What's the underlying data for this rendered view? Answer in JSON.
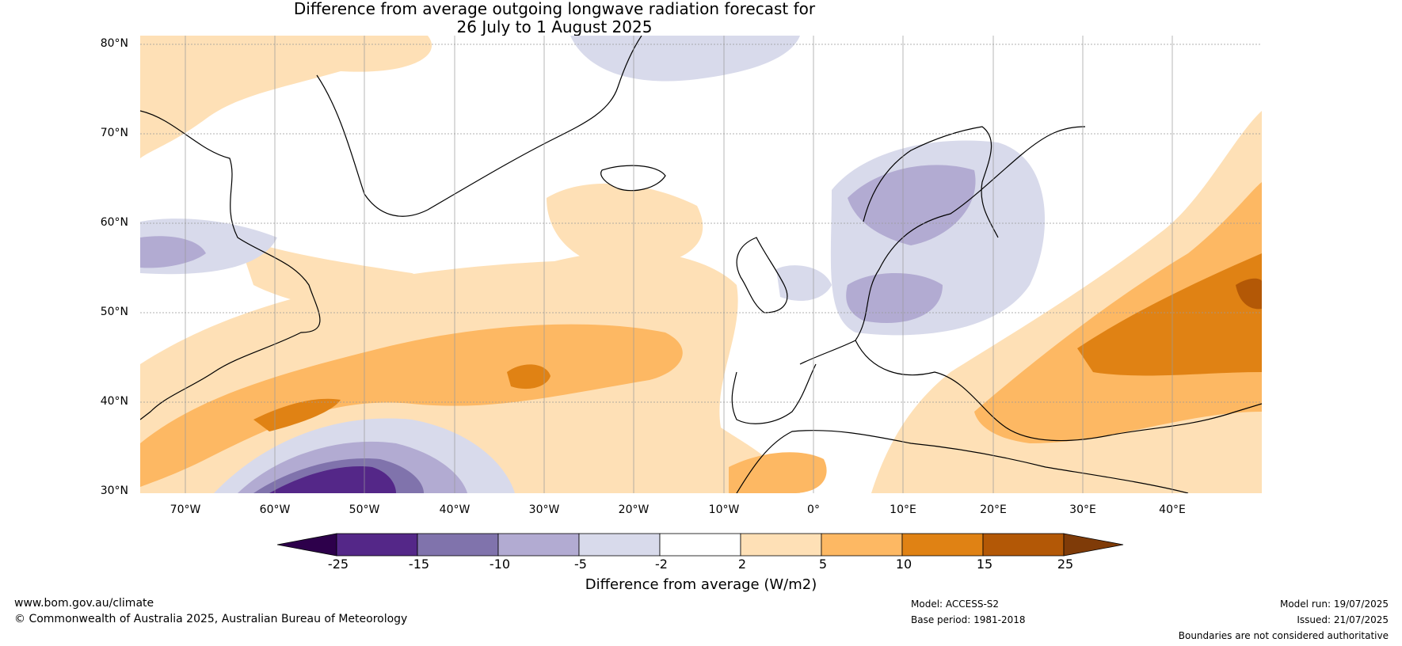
{
  "title": {
    "line1": "Difference from average outgoing longwave radiation forecast for",
    "line2": "26 July to 1 August 2025"
  },
  "map": {
    "lat_labels": [
      "80°N",
      "70°N",
      "60°N",
      "50°N",
      "40°N",
      "30°N"
    ],
    "lon_labels": [
      "70°W",
      "60°W",
      "50°W",
      "40°W",
      "30°W",
      "20°W",
      "10°W",
      "0°",
      "10°E",
      "20°E",
      "30°E",
      "40°E"
    ],
    "regions": [
      {
        "name": "north-atlantic-warm-band",
        "category": "2 to 5",
        "color": "#fde0b6"
      },
      {
        "name": "central-atlantic-warm-core",
        "category": "5 to 10",
        "color": "#f9b55d"
      },
      {
        "name": "atlantic-hot-spot",
        "category": "10 to 15",
        "color": "#e08317"
      },
      {
        "name": "subtropical-cold-pool",
        "category": "-25 to -15",
        "color": "#54278f"
      },
      {
        "name": "scandinavia-cool",
        "category": "-10 to -5",
        "color": "#b2abd2"
      },
      {
        "name": "eastern-europe-warm",
        "category": "15 to 25",
        "color": "#b35806"
      }
    ]
  },
  "colorbar": {
    "ticks": [
      "-25",
      "-15",
      "-10",
      "-5",
      "-2",
      "2",
      "5",
      "10",
      "15",
      "25"
    ],
    "colors": [
      "#2d004b",
      "#542788",
      "#8073ac",
      "#b2abd2",
      "#d8daeb",
      "#ffffff",
      "#fee0b6",
      "#fdb863",
      "#e08214",
      "#b35806",
      "#7f3b08"
    ],
    "label": "Difference from average (W/m2)"
  },
  "footer": {
    "website": "www.bom.gov.au/climate",
    "copyright": "© Commonwealth of Australia 2025, Australian Bureau of Meteorology",
    "model": "Model: ACCESS-S2",
    "base_period": "Base period: 1981-2018",
    "model_run": "Model run: 19/07/2025",
    "issued": "Issued: 21/07/2025",
    "disclaimer": "Boundaries are not considered authoritative"
  }
}
